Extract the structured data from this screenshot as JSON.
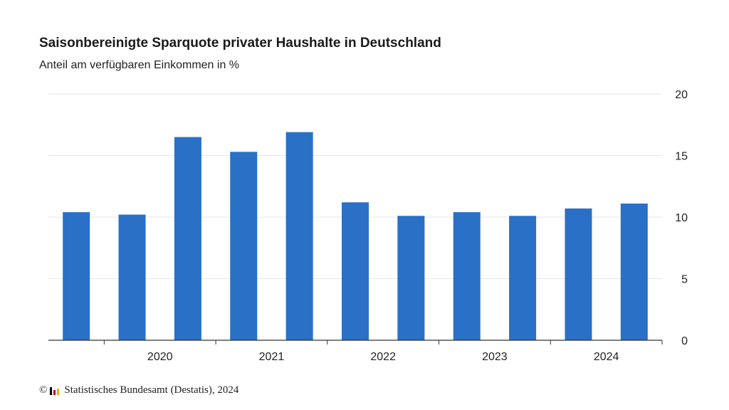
{
  "chart_data": {
    "type": "bar",
    "title": "Saisonbereinigte Sparquote privater Haushalte in Deutschland",
    "subtitle": "Anteil am verfügbaren Einkommen in %",
    "values": [
      10.4,
      10.2,
      16.5,
      15.3,
      16.9,
      11.2,
      10.1,
      10.4,
      10.1,
      10.7,
      11.1
    ],
    "year_labels": [
      "2020",
      "2021",
      "2022",
      "2023",
      "2024"
    ],
    "ylim": [
      0,
      20
    ],
    "yticks": [
      "0",
      "5",
      "10",
      "15",
      "20"
    ],
    "y_axis_position": "right",
    "grid": true,
    "bar_color": "#2970c6"
  },
  "footer": {
    "copyright_symbol": "©",
    "source": "Statistisches Bundesamt (Destatis), 2024",
    "logo_colors": [
      "#000000",
      "#d00000",
      "#e8b400"
    ]
  }
}
